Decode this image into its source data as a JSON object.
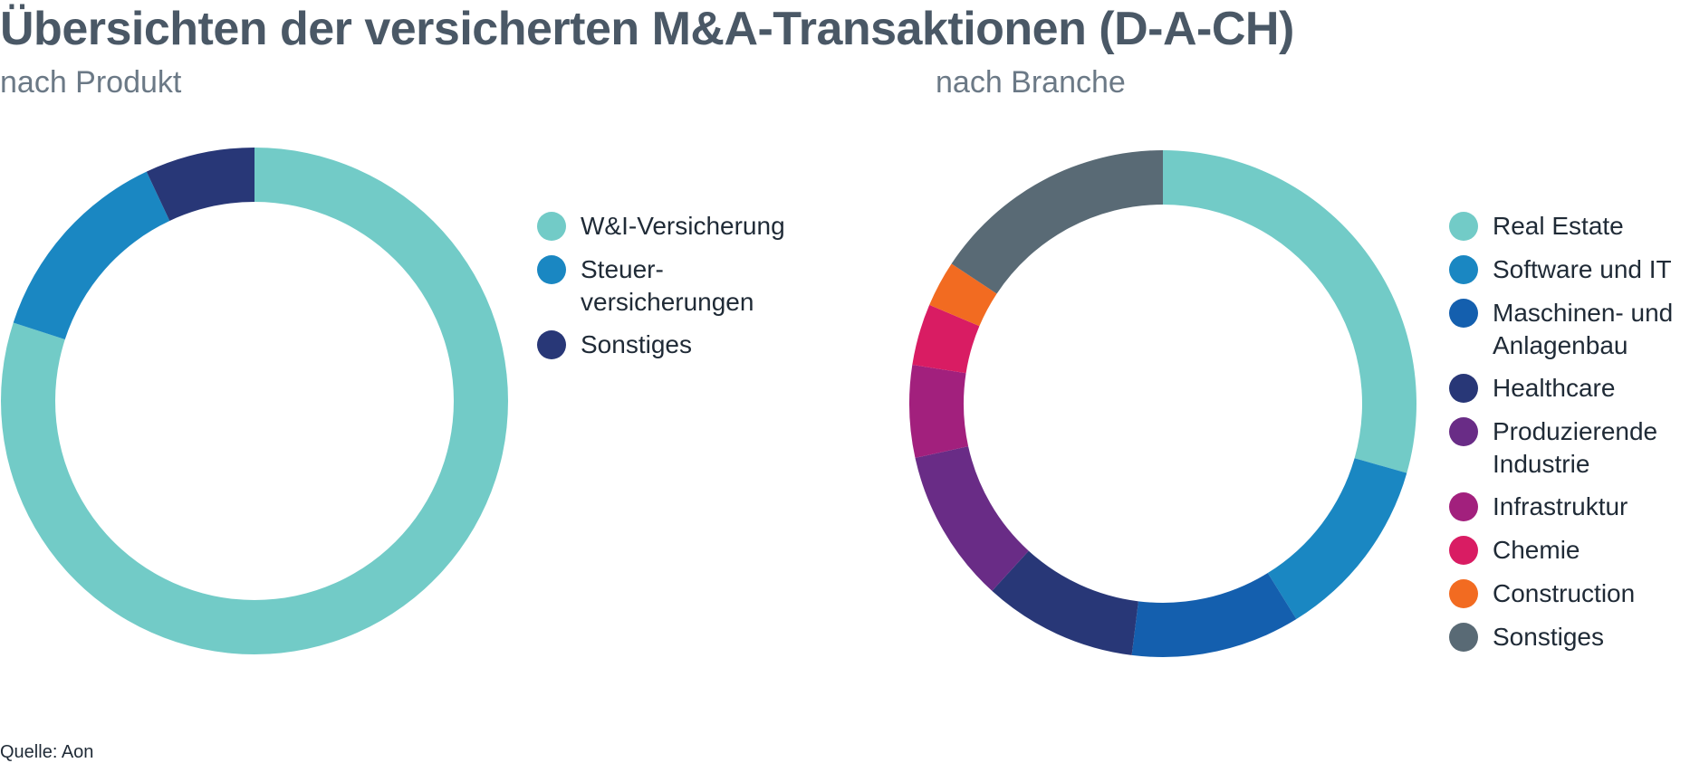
{
  "title": "Übersichten der versicherten M&A-Transaktionen (D-A-CH)",
  "source": "Quelle: Aon",
  "chart_data": [
    {
      "type": "pie",
      "subtitle": "nach Produkt",
      "donut": true,
      "legend_position": "right",
      "slices": [
        {
          "label": "W&I-Versicherung",
          "value": 80,
          "color": "#72cbc7"
        },
        {
          "label": "Steuer-\nversicherungen",
          "value": 13,
          "color": "#1a87c2"
        },
        {
          "label": "Sonstiges",
          "value": 7,
          "color": "#283777"
        }
      ]
    },
    {
      "type": "pie",
      "subtitle": "nach Branche",
      "donut": true,
      "legend_position": "right",
      "slices": [
        {
          "label": "Real Estate",
          "value": 30,
          "color": "#72cbc7"
        },
        {
          "label": "Software und IT",
          "value": 12,
          "color": "#1a87c2"
        },
        {
          "label": "Maschinen- und\nAnlagenbau",
          "value": 11,
          "color": "#145fae"
        },
        {
          "label": "Healthcare",
          "value": 10,
          "color": "#283777"
        },
        {
          "label": "Produzierende\nIndustrie",
          "value": 10,
          "color": "#692c86"
        },
        {
          "label": "Infrastruktur",
          "value": 6,
          "color": "#a2207d"
        },
        {
          "label": "Chemie",
          "value": 4,
          "color": "#d91c63"
        },
        {
          "label": "Construction",
          "value": 3,
          "color": "#f26b21"
        },
        {
          "label": "Sonstiges",
          "value": 16,
          "color": "#596a75"
        }
      ]
    }
  ]
}
